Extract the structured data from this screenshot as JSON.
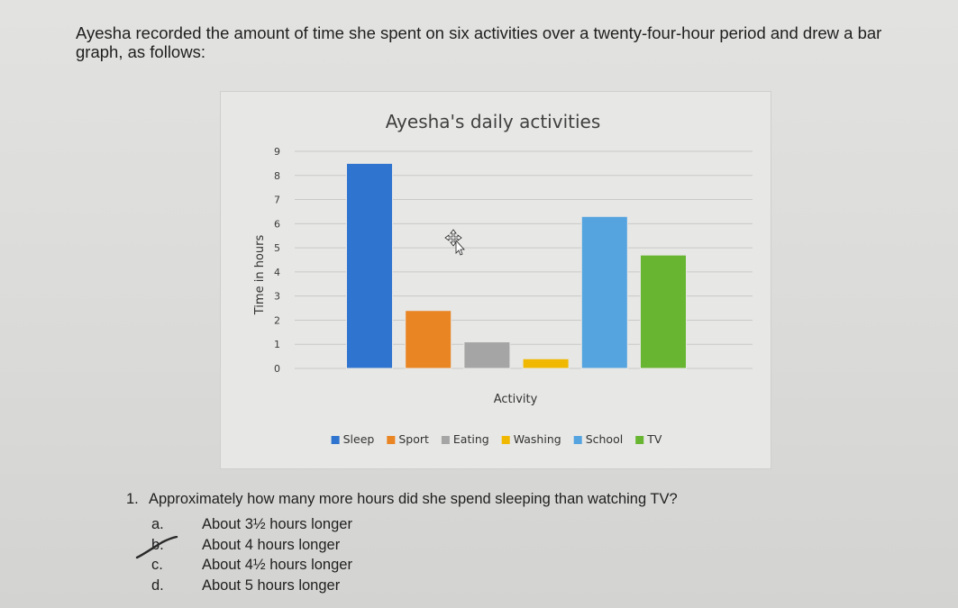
{
  "intro_text": "Ayesha recorded the amount of time she spent on six activities over a twenty-four-hour period and drew a bar graph, as follows:",
  "chart_data": {
    "type": "bar",
    "title": "Ayesha's daily activities",
    "xlabel": "Activity",
    "ylabel": "Time in hours",
    "ylim": [
      0,
      9
    ],
    "yticks": [
      0,
      1,
      2,
      3,
      4,
      5,
      6,
      7,
      8,
      9
    ],
    "categories": [
      "Sleep",
      "Sport",
      "Eating",
      "Washing",
      "School",
      "TV"
    ],
    "values": [
      8.5,
      2.4,
      1.1,
      0.4,
      6.3,
      4.7
    ],
    "colors": [
      "#2f74cf",
      "#e98523",
      "#a5a5a5",
      "#f0b800",
      "#55a4df",
      "#67b530"
    ],
    "grid": true,
    "legend_position": "bottom",
    "x_tick_labels_shown": false
  },
  "question": {
    "number": "1.",
    "text": "Approximately how many more hours did she spend sleeping than watching TV?",
    "choices": [
      {
        "letter": "a.",
        "text": "About 3½ hours longer"
      },
      {
        "letter": "b.",
        "text": "About 4 hours longer"
      },
      {
        "letter": "c.",
        "text": "About 4½ hours longer"
      },
      {
        "letter": "d.",
        "text": "About 5 hours longer"
      }
    ],
    "marked_choice": "b."
  }
}
